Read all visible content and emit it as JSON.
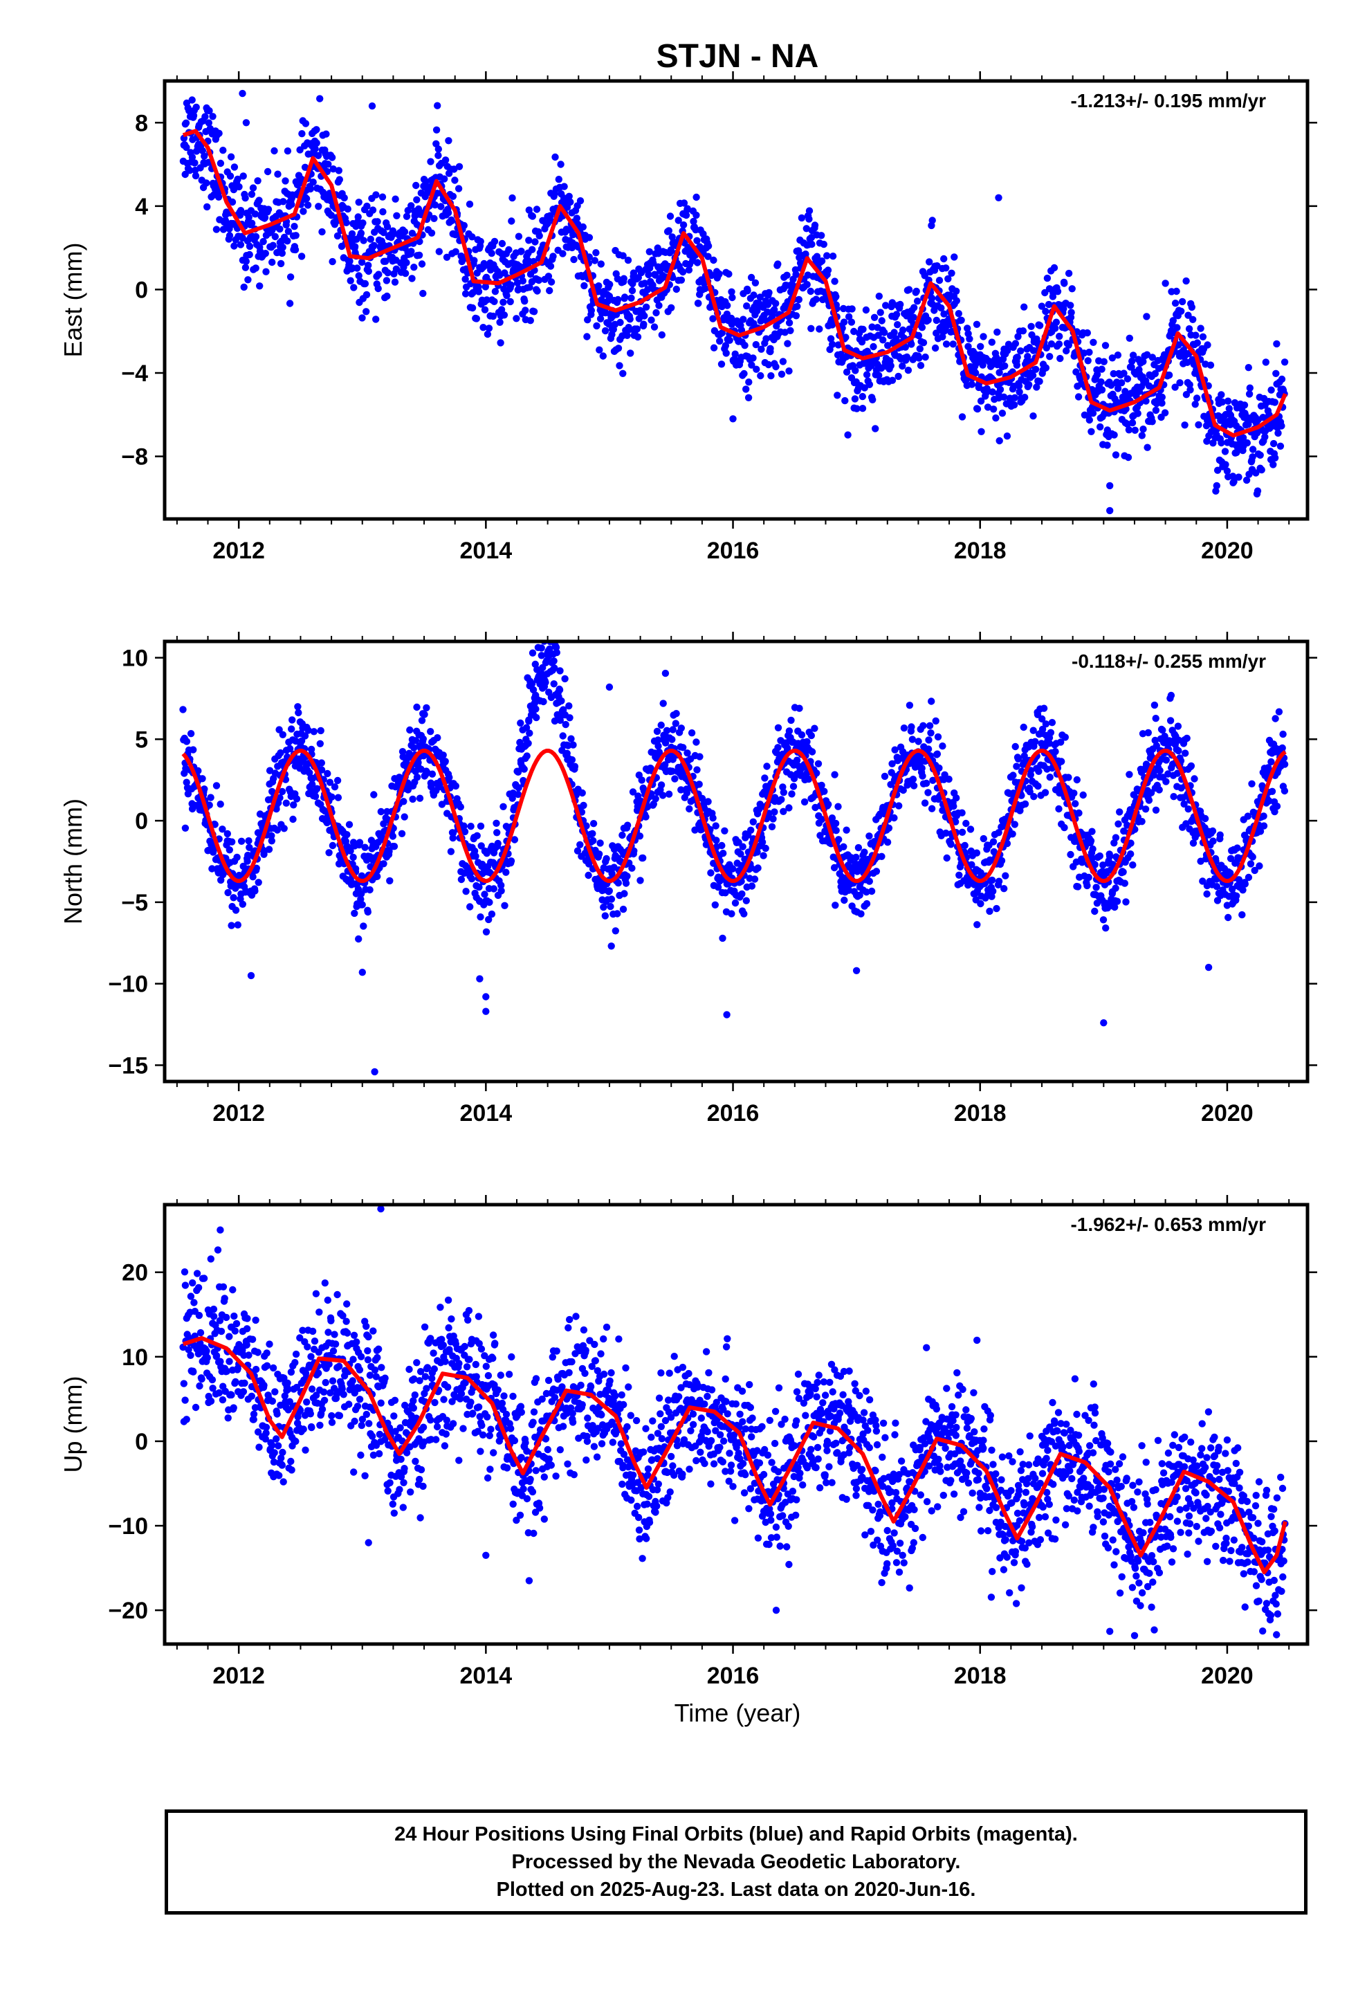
{
  "title": "STJN - NA",
  "xlabel": "Time (year)",
  "footer": {
    "line1": "24 Hour Positions Using Final Orbits (blue) and Rapid Orbits (magenta).",
    "line2": "Processed by the Nevada Geodetic Laboratory.",
    "line3": "Plotted on 2025-Aug-23. Last data on 2020-Jun-16."
  },
  "colors": {
    "points": "#0000ff",
    "fit": "#ff0000",
    "axes": "#000000"
  },
  "chart_data": [
    {
      "type": "scatter",
      "name_panel": "east",
      "ylabel": "East (mm)",
      "rate_text": "-1.213+/- 0.195 mm/yr",
      "xlim": [
        2011.4,
        2020.65
      ],
      "ylim": [
        -11,
        10
      ],
      "xticks": [
        2012,
        2014,
        2016,
        2018,
        2020
      ],
      "yticks": [
        -8,
        -4,
        0,
        4,
        8
      ],
      "ytick_labels": [
        "−8",
        "−4",
        "0",
        "4",
        "8"
      ],
      "fit_line": [
        [
          2011.55,
          7.4
        ],
        [
          2011.65,
          7.6
        ],
        [
          2011.75,
          6.8
        ],
        [
          2011.9,
          4.2
        ],
        [
          2012.05,
          2.7
        ],
        [
          2012.25,
          3.1
        ],
        [
          2012.45,
          3.6
        ],
        [
          2012.6,
          6.3
        ],
        [
          2012.75,
          5.0
        ],
        [
          2012.9,
          1.6
        ],
        [
          2013.05,
          1.5
        ],
        [
          2013.25,
          2.0
        ],
        [
          2013.45,
          2.5
        ],
        [
          2013.6,
          5.2
        ],
        [
          2013.75,
          3.8
        ],
        [
          2013.9,
          0.4
        ],
        [
          2014.1,
          0.3
        ],
        [
          2014.25,
          0.7
        ],
        [
          2014.45,
          1.3
        ],
        [
          2014.6,
          4.0
        ],
        [
          2014.75,
          2.7
        ],
        [
          2014.9,
          -0.7
        ],
        [
          2015.05,
          -1.0
        ],
        [
          2015.25,
          -0.6
        ],
        [
          2015.45,
          0.1
        ],
        [
          2015.6,
          2.7
        ],
        [
          2015.75,
          1.5
        ],
        [
          2015.9,
          -1.8
        ],
        [
          2016.05,
          -2.2
        ],
        [
          2016.25,
          -1.8
        ],
        [
          2016.45,
          -1.1
        ],
        [
          2016.6,
          1.5
        ],
        [
          2016.75,
          0.4
        ],
        [
          2016.9,
          -2.9
        ],
        [
          2017.05,
          -3.3
        ],
        [
          2017.25,
          -3.0
        ],
        [
          2017.45,
          -2.3
        ],
        [
          2017.6,
          0.3
        ],
        [
          2017.75,
          -0.8
        ],
        [
          2017.9,
          -4.1
        ],
        [
          2018.05,
          -4.5
        ],
        [
          2018.25,
          -4.2
        ],
        [
          2018.45,
          -3.5
        ],
        [
          2018.6,
          -0.8
        ],
        [
          2018.75,
          -2.0
        ],
        [
          2018.9,
          -5.4
        ],
        [
          2019.05,
          -5.8
        ],
        [
          2019.25,
          -5.4
        ],
        [
          2019.45,
          -4.7
        ],
        [
          2019.6,
          -2.1
        ],
        [
          2019.75,
          -3.2
        ],
        [
          2019.9,
          -6.5
        ],
        [
          2020.05,
          -7.0
        ],
        [
          2020.25,
          -6.6
        ],
        [
          2020.4,
          -6.0
        ],
        [
          2020.47,
          -5.0
        ]
      ],
      "scatter_stats": {
        "n_points": 2400,
        "noise_sd": 1.2,
        "outliers": [
          [
            2012.03,
            9.4
          ],
          [
            2012.06,
            8.0
          ],
          [
            2013.08,
            8.8
          ],
          [
            2018.15,
            4.4
          ],
          [
            2019.5,
            0.3
          ],
          [
            2019.55,
            -0.1
          ],
          [
            2019.05,
            -10.6
          ],
          [
            2020.0,
            -8.7
          ],
          [
            2016.0,
            -6.2
          ]
        ]
      }
    },
    {
      "type": "scatter",
      "name_panel": "north",
      "ylabel": "North (mm)",
      "rate_text": "-0.118+/- 0.255 mm/yr",
      "xlim": [
        2011.4,
        2020.65
      ],
      "ylim": [
        -16,
        11
      ],
      "xticks": [
        2012,
        2014,
        2016,
        2018,
        2020
      ],
      "yticks": [
        -15,
        -10,
        -5,
        0,
        5,
        10
      ],
      "ytick_labels": [
        "−15",
        "−10",
        "−5",
        "0",
        "5",
        "10"
      ],
      "fit_amplitude": 4.0,
      "fit_offset": 0.3,
      "fit_phase_peak": 0.5,
      "fit_range": [
        2011.55,
        2020.47
      ],
      "scatter_stats": {
        "n_points": 2400,
        "noise_sd": 1.3,
        "outliers": [
          [
            2013.1,
            -15.4
          ],
          [
            2014.0,
            -11.7
          ],
          [
            2014.0,
            -10.8
          ],
          [
            2013.95,
            -9.7
          ],
          [
            2012.1,
            -9.5
          ],
          [
            2013.0,
            -9.3
          ],
          [
            2015.95,
            -11.9
          ],
          [
            2019.0,
            -12.4
          ],
          [
            2017.0,
            -9.2
          ],
          [
            2019.85,
            -9.0
          ],
          [
            2015.0,
            8.2
          ],
          [
            2014.45,
            10.6
          ],
          [
            2014.5,
            10.3
          ],
          [
            2014.55,
            9.8
          ],
          [
            2014.4,
            9.6
          ],
          [
            2014.6,
            9.2
          ]
        ]
      }
    },
    {
      "type": "scatter",
      "name_panel": "up",
      "ylabel": "Up (mm)",
      "rate_text": "-1.962+/- 0.653 mm/yr",
      "xlim": [
        2011.4,
        2020.65
      ],
      "ylim": [
        -24,
        28
      ],
      "xticks": [
        2012,
        2014,
        2016,
        2018,
        2020
      ],
      "yticks": [
        -20,
        -10,
        0,
        10,
        20
      ],
      "ytick_labels": [
        "−20",
        "−10",
        "0",
        "10",
        "20"
      ],
      "fit_line": [
        [
          2011.55,
          11.5
        ],
        [
          2011.7,
          12.2
        ],
        [
          2011.9,
          11.0
        ],
        [
          2012.1,
          8.0
        ],
        [
          2012.25,
          2.5
        ],
        [
          2012.35,
          0.5
        ],
        [
          2012.5,
          5.0
        ],
        [
          2012.65,
          9.8
        ],
        [
          2012.85,
          9.5
        ],
        [
          2013.05,
          6.0
        ],
        [
          2013.2,
          1.0
        ],
        [
          2013.3,
          -1.5
        ],
        [
          2013.45,
          2.0
        ],
        [
          2013.65,
          8.0
        ],
        [
          2013.85,
          7.5
        ],
        [
          2014.05,
          4.5
        ],
        [
          2014.2,
          -1.0
        ],
        [
          2014.3,
          -3.8
        ],
        [
          2014.45,
          0.5
        ],
        [
          2014.65,
          6.0
        ],
        [
          2014.85,
          5.5
        ],
        [
          2015.05,
          3.0
        ],
        [
          2015.2,
          -2.5
        ],
        [
          2015.3,
          -5.5
        ],
        [
          2015.45,
          -1.5
        ],
        [
          2015.65,
          4.0
        ],
        [
          2015.85,
          3.5
        ],
        [
          2016.05,
          1.0
        ],
        [
          2016.2,
          -4.5
        ],
        [
          2016.3,
          -7.5
        ],
        [
          2016.45,
          -3.5
        ],
        [
          2016.65,
          2.2
        ],
        [
          2016.85,
          1.5
        ],
        [
          2017.05,
          -1.5
        ],
        [
          2017.2,
          -6.5
        ],
        [
          2017.3,
          -9.5
        ],
        [
          2017.45,
          -5.5
        ],
        [
          2017.65,
          0.3
        ],
        [
          2017.85,
          -0.5
        ],
        [
          2018.05,
          -3.5
        ],
        [
          2018.2,
          -8.5
        ],
        [
          2018.3,
          -11.5
        ],
        [
          2018.45,
          -7.5
        ],
        [
          2018.65,
          -1.5
        ],
        [
          2018.85,
          -2.5
        ],
        [
          2019.05,
          -5.5
        ],
        [
          2019.2,
          -10.5
        ],
        [
          2019.3,
          -13.5
        ],
        [
          2019.45,
          -9.5
        ],
        [
          2019.65,
          -3.6
        ],
        [
          2019.85,
          -4.8
        ],
        [
          2020.05,
          -7.2
        ],
        [
          2020.2,
          -12.5
        ],
        [
          2020.3,
          -15.5
        ],
        [
          2020.4,
          -13.5
        ],
        [
          2020.47,
          -9.5
        ]
      ],
      "scatter_stats": {
        "n_points": 2400,
        "noise_sd": 4.0,
        "outliers": [
          [
            2013.15,
            27.5
          ],
          [
            2011.85,
            25.0
          ],
          [
            2013.05,
            -12.0
          ],
          [
            2014.35,
            -16.5
          ],
          [
            2016.35,
            -20.0
          ],
          [
            2019.25,
            -23.0
          ],
          [
            2019.05,
            -22.5
          ],
          [
            2014.0,
            -13.5
          ]
        ]
      }
    }
  ]
}
